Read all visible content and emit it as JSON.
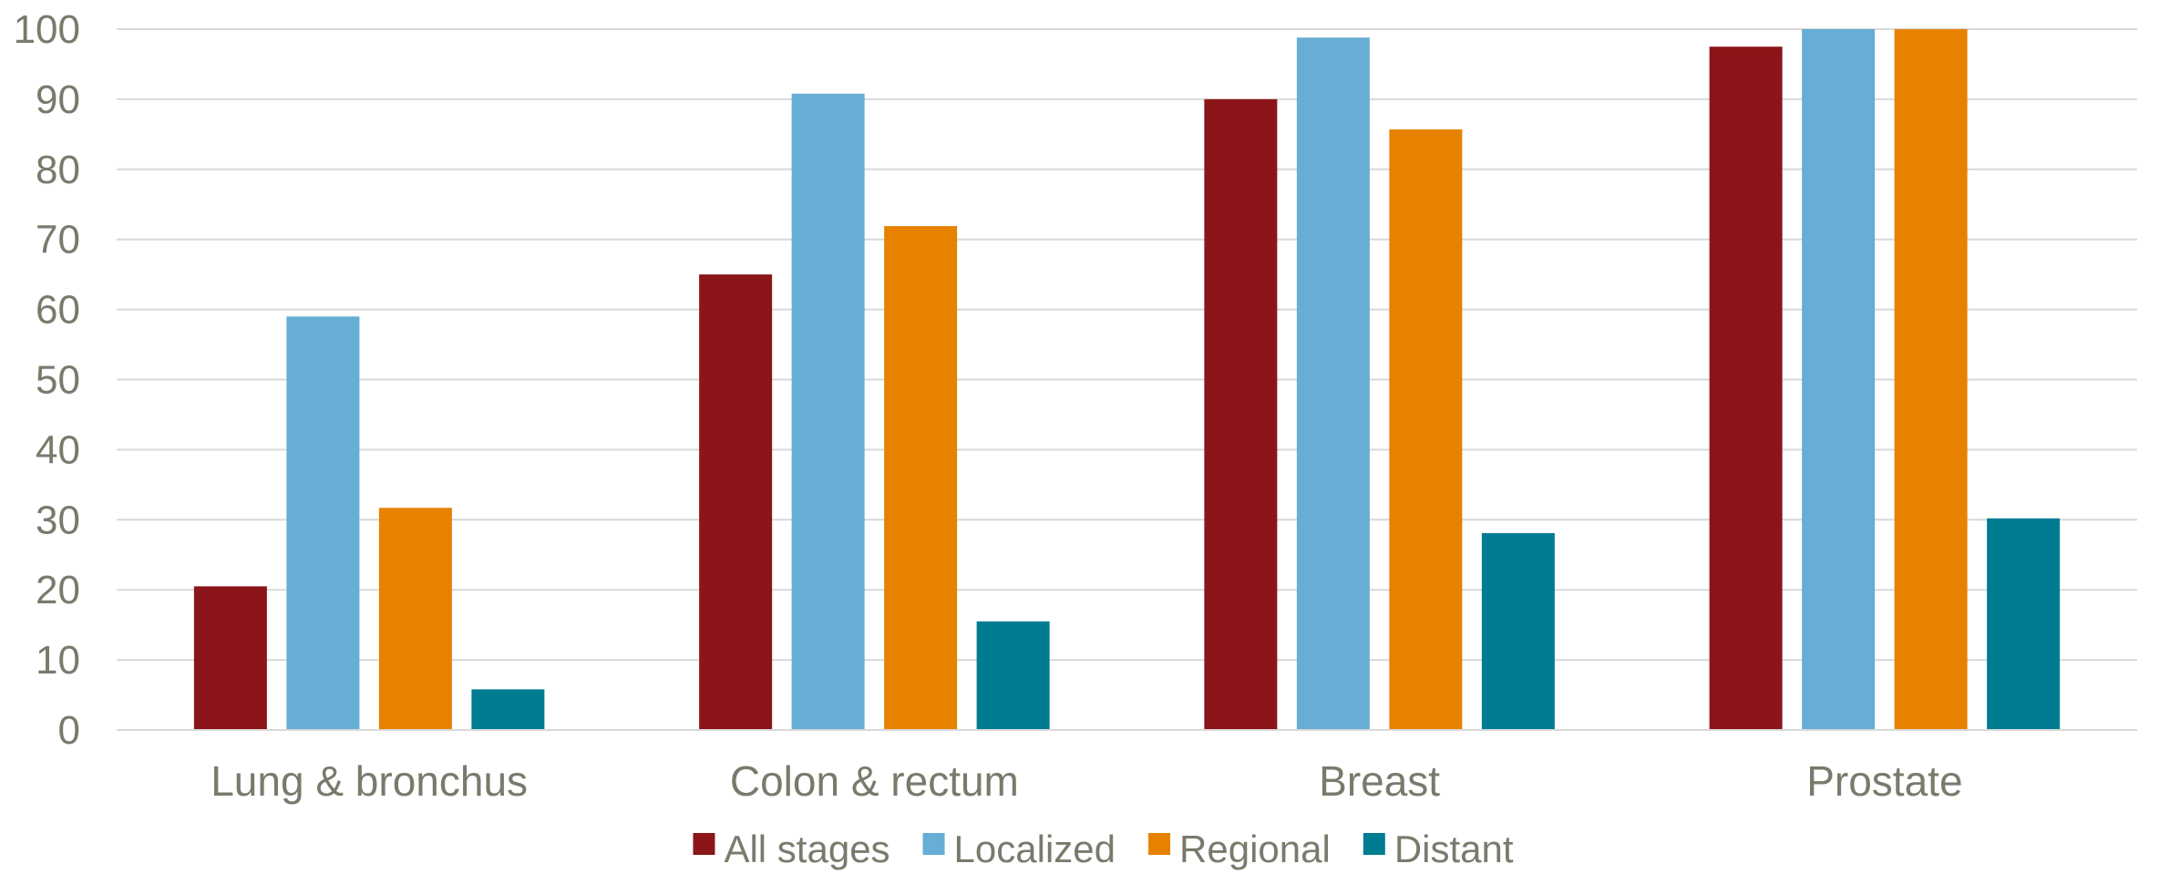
{
  "chart_data": {
    "type": "bar",
    "title": "",
    "xlabel": "",
    "ylabel": "",
    "ylim": [
      0,
      100
    ],
    "yticks": [
      0,
      10,
      20,
      30,
      40,
      50,
      60,
      70,
      80,
      90,
      100
    ],
    "grid": true,
    "legend_position": "bottom",
    "categories": [
      "Lung & bronchus",
      "Colon & rectum",
      "Breast",
      "Prostate"
    ],
    "series": [
      {
        "name": "All stages",
        "color": "#8b1518",
        "values": [
          20.5,
          65,
          90,
          97.5
        ]
      },
      {
        "name": "Localized",
        "color": "#66aed3",
        "values": [
          59,
          90.8,
          98.8,
          100
        ]
      },
      {
        "name": "Regional",
        "color": "#e68200",
        "values": [
          31.7,
          71.9,
          85.7,
          100
        ]
      },
      {
        "name": "Distant",
        "color": "#007c92",
        "values": [
          5.8,
          15.5,
          28.1,
          30.2
        ]
      }
    ]
  }
}
